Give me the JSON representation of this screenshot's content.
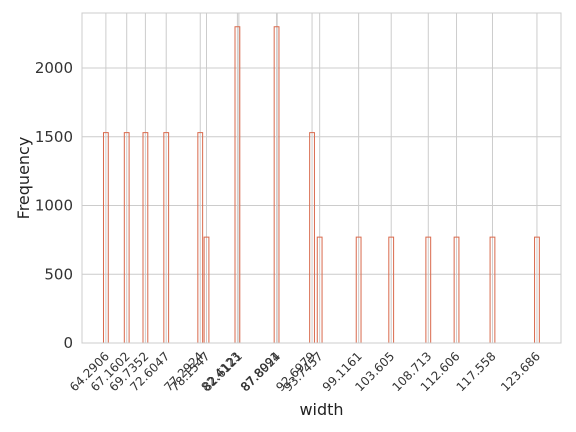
{
  "chart_data": {
    "type": "bar",
    "title": "",
    "xlabel": "width",
    "ylabel": "Frequency",
    "ylim": [
      0,
      2400
    ],
    "yticks": [
      0,
      500,
      1000,
      1500,
      2000
    ],
    "grid": true,
    "categories": [
      "64.2906",
      "67.1602",
      "69.7352",
      "72.6047",
      "77.2924",
      "78.1547",
      "82.4123",
      "82.6121",
      "87.8091",
      "87.8924",
      "92.6979",
      "93.7457",
      "99.1161",
      "103.605",
      "108.713",
      "112.606",
      "117.558",
      "123.686"
    ],
    "values": [
      1530,
      1530,
      1530,
      1530,
      1530,
      770,
      2300,
      0,
      2300,
      0,
      1530,
      770,
      770,
      770,
      770,
      770,
      770,
      770
    ],
    "colors": {
      "bar_edge": "#d9694c",
      "grid": "#cccccc",
      "spine": "#cccccc"
    }
  }
}
